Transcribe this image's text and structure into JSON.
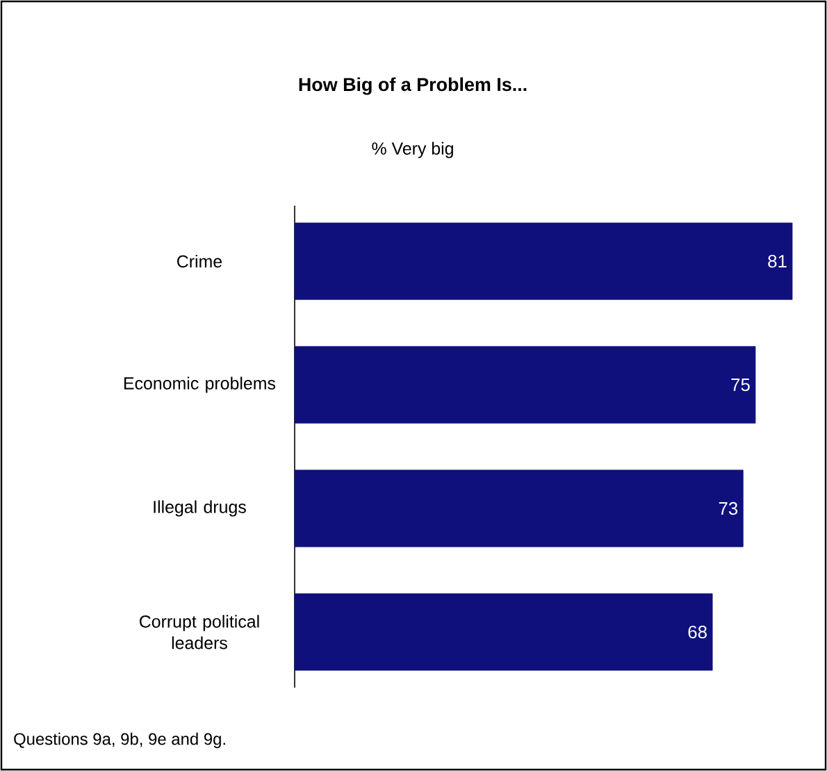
{
  "chart_data": {
    "type": "bar",
    "orientation": "horizontal",
    "title": "How Big of a Problem Is...",
    "subtitle": "% Very big",
    "categories": [
      "Crime",
      "Economic problems",
      "Illegal drugs",
      "Corrupt political leaders"
    ],
    "values": [
      81,
      75,
      73,
      68
    ],
    "color": "#10107c",
    "data_labels": true,
    "annotations": [
      "Questions 9a, 9b, 9e and 9g."
    ]
  }
}
